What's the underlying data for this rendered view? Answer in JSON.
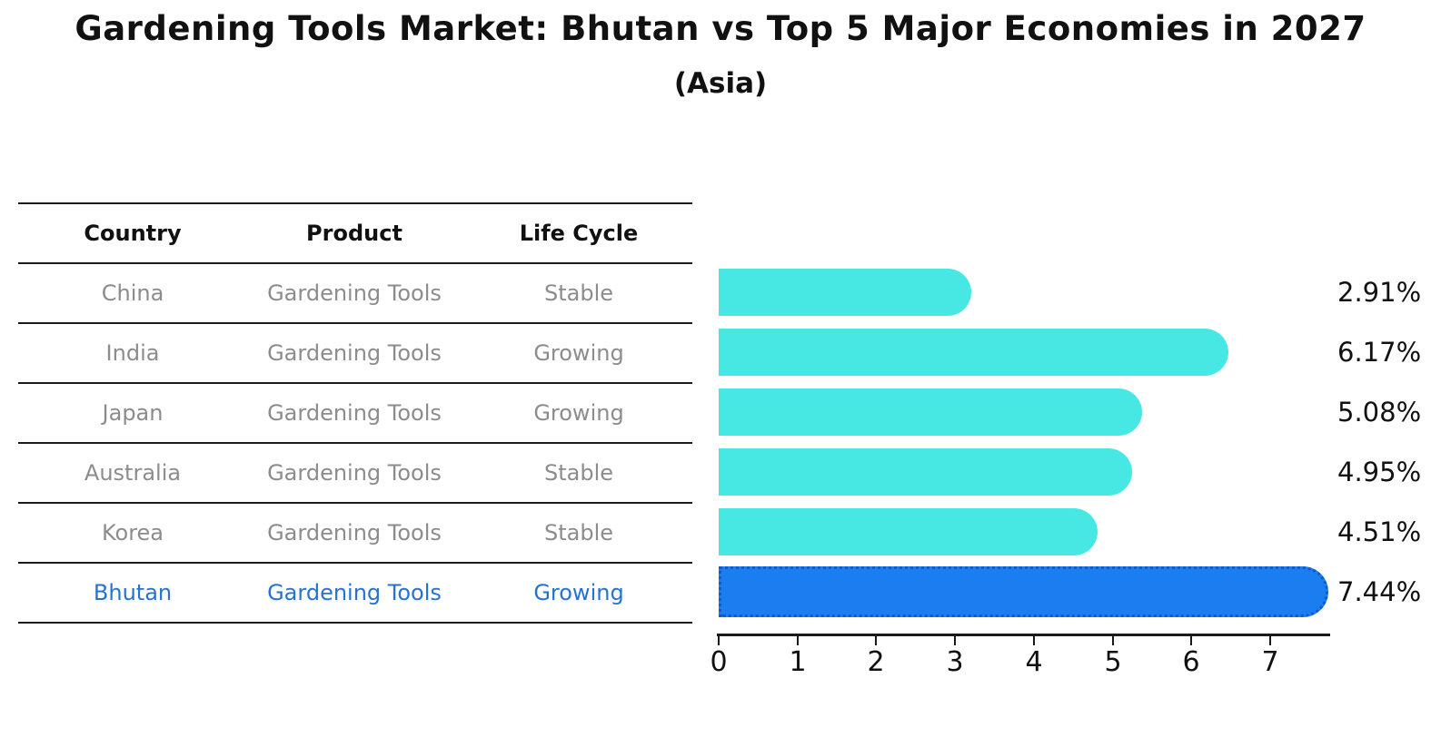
{
  "title": "Gardening Tools Market: Bhutan vs Top 5 Major Economies in 2027",
  "subtitle": "(Asia)",
  "table": {
    "headers": [
      "Country",
      "Product",
      "Life Cycle"
    ],
    "rows": [
      {
        "country": "China",
        "product": "Gardening Tools",
        "life_cycle": "Stable"
      },
      {
        "country": "India",
        "product": "Gardening Tools",
        "life_cycle": "Growing"
      },
      {
        "country": "Japan",
        "product": "Gardening Tools",
        "life_cycle": "Growing"
      },
      {
        "country": "Australia",
        "product": "Gardening Tools",
        "life_cycle": "Stable"
      },
      {
        "country": "Korea",
        "product": "Gardening Tools",
        "life_cycle": "Stable"
      },
      {
        "country": "Bhutan",
        "product": "Gardening Tools",
        "life_cycle": "Growing"
      }
    ]
  },
  "chart_data": {
    "type": "bar",
    "orientation": "horizontal",
    "title": "Gardening Tools Market: Bhutan vs Top 5 Major Economies in 2027",
    "subtitle": "(Asia)",
    "categories": [
      "China",
      "India",
      "Japan",
      "Australia",
      "Korea",
      "Bhutan"
    ],
    "values": [
      2.91,
      6.17,
      5.08,
      4.95,
      4.51,
      7.44
    ],
    "value_labels": [
      "2.91%",
      "6.17%",
      "5.08%",
      "4.95%",
      "4.51%",
      "7.44%"
    ],
    "highlighted_category": "Bhutan",
    "xticks": [
      "0",
      "1",
      "2",
      "3",
      "4",
      "5",
      "6",
      "7"
    ],
    "xlim": [
      0,
      7.75
    ],
    "grid": false,
    "legend": "none",
    "colors": {
      "bar": "#47e8e4",
      "highlight_bar": "#1a7df0",
      "highlight_bar_border": "#1259c9",
      "row_text": "#8c8c8c",
      "highlight_text": "#2472d8",
      "header_text": "#111111",
      "axis": "#1a1a1a"
    }
  }
}
